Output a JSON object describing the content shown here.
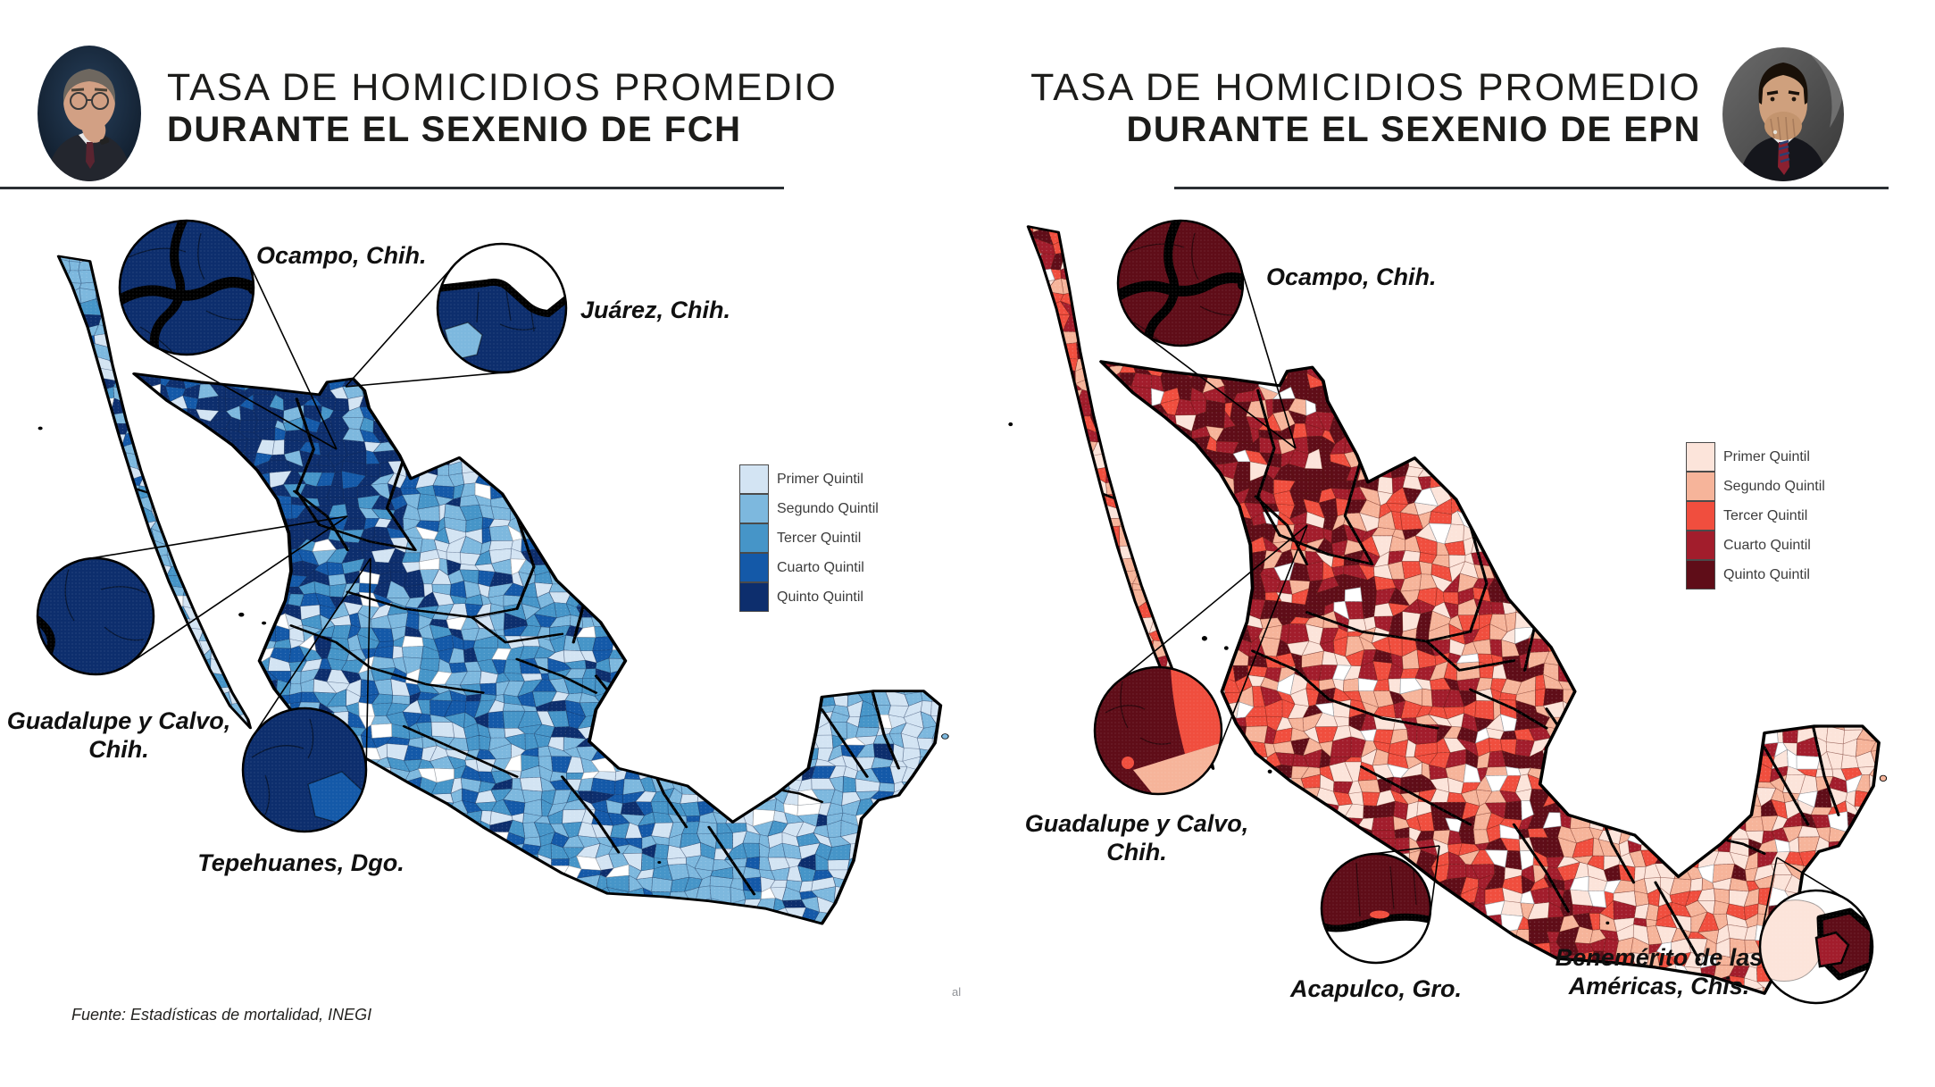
{
  "panels": {
    "left": {
      "title_line1": "TASA DE HOMICIDIOS PROMEDIO",
      "title_line2": "DURANTE EL SEXENIO DE FCH",
      "president_photo": "felipe-calderon-portrait",
      "legend": [
        {
          "label": "Primer Quintil",
          "color": "#d3e4f3"
        },
        {
          "label": "Segundo Quintil",
          "color": "#7db8de"
        },
        {
          "label": "Tercer Quintil",
          "color": "#4695c8"
        },
        {
          "label": "Cuarto Quintil",
          "color": "#1459a8"
        },
        {
          "label": "Quinto Quintil",
          "color": "#0d2e6d"
        }
      ],
      "callouts": [
        {
          "lines": [
            "Ocampo, Chih."
          ]
        },
        {
          "lines": [
            "Juárez, Chih."
          ]
        },
        {
          "lines": [
            "Guadalupe y Calvo,",
            "Chih."
          ]
        },
        {
          "lines": [
            "Tepehuanes, Dgo."
          ]
        }
      ],
      "source": "Fuente: Estadísticas de mortalidad, INEGI"
    },
    "right": {
      "title_line1": "TASA DE HOMICIDIOS PROMEDIO",
      "title_line2": "DURANTE EL SEXENIO DE EPN",
      "president_photo": "enrique-pena-nieto-portrait",
      "legend": [
        {
          "label": "Primer Quintil",
          "color": "#fce4da"
        },
        {
          "label": "Segundo Quintil",
          "color": "#f6b49a"
        },
        {
          "label": "Tercer Quintil",
          "color": "#f04e3e"
        },
        {
          "label": "Cuarto Quintil",
          "color": "#a21d2c"
        },
        {
          "label": "Quinto Quintil",
          "color": "#5f0d18"
        }
      ],
      "callouts": [
        {
          "lines": [
            "Ocampo, Chih."
          ]
        },
        {
          "lines": [
            "Guadalupe y Calvo,",
            "Chih."
          ]
        },
        {
          "lines": [
            "Acapulco, Gro."
          ]
        },
        {
          "lines": [
            "Benemérito de las",
            "Américas, Chis."
          ]
        }
      ]
    }
  },
  "watermark": "al"
}
